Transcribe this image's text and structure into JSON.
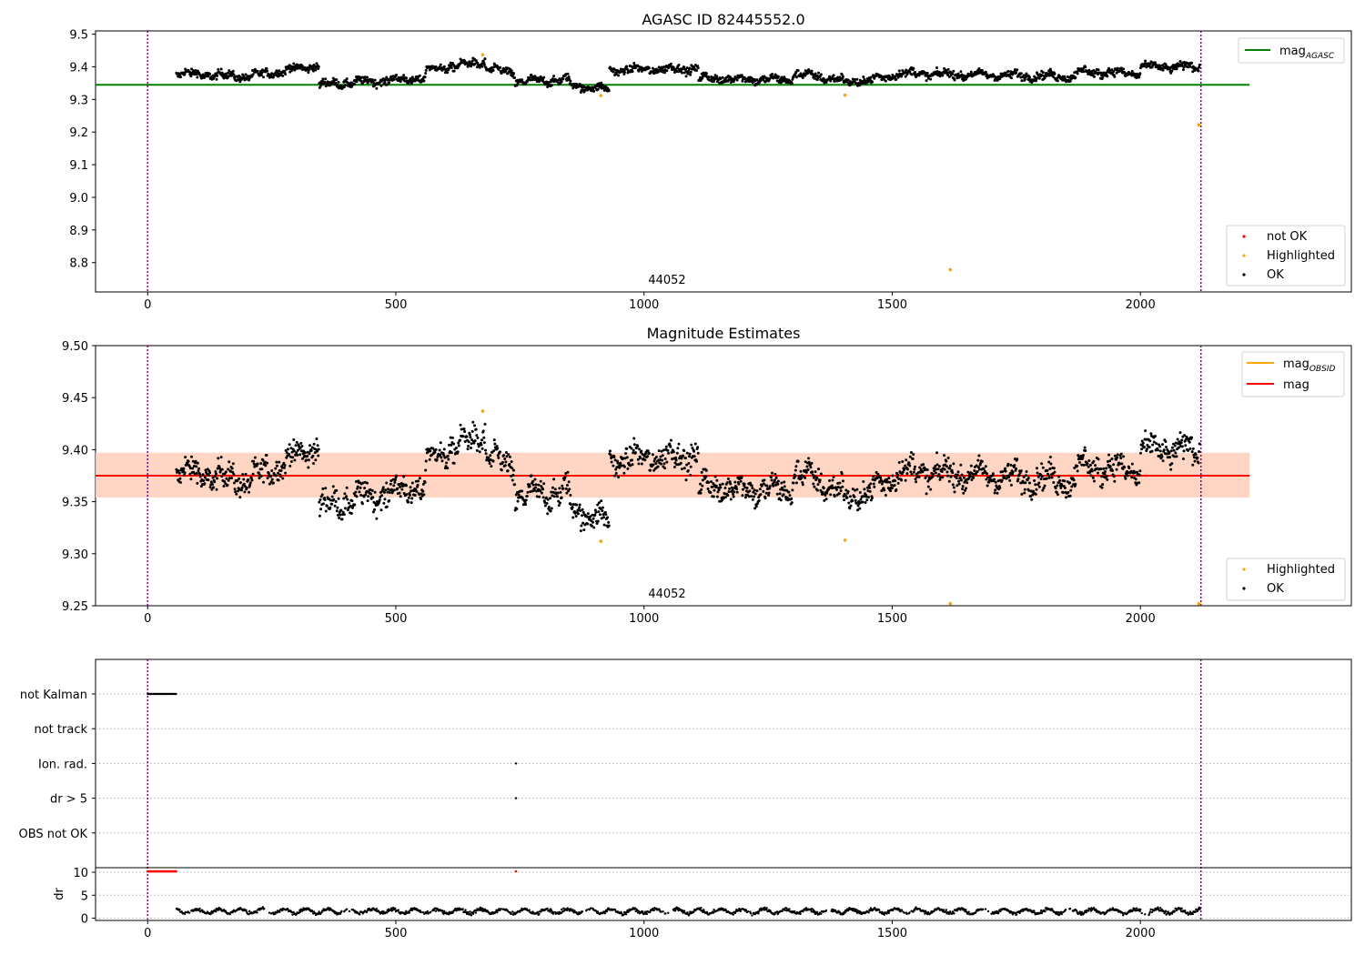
{
  "colors": {
    "ok": "#000000",
    "highlighted": "#ffa500",
    "not_ok": "#ff0000",
    "agasc_line": "#008000",
    "mag_line": "#ff0000",
    "mag_obsid_line": "#ffa500",
    "mag_band": "#ffc0cb",
    "obsid_band": "#ffd3b0",
    "obs_boundary": "#800080",
    "grid": "#b0b0b0"
  },
  "chart_data": [
    {
      "type": "scatter",
      "title": "AGASC ID 82445552.0",
      "xlim": [
        -105,
        2425
      ],
      "ylim": [
        8.71,
        9.51
      ],
      "x_ticks": [
        0,
        500,
        1000,
        1500,
        2000
      ],
      "y_ticks": [
        8.8,
        8.9,
        9.0,
        9.1,
        9.2,
        9.3,
        9.4,
        9.5
      ],
      "x_tick_labels": [
        "0",
        "500",
        "1000",
        "1500",
        "2000"
      ],
      "y_tick_labels": [
        "8.8",
        "8.9",
        "9.0",
        "9.1",
        "9.2",
        "9.3",
        "9.4",
        "9.5"
      ],
      "obsid_label": "44052",
      "obs_boundaries": [
        0,
        2122
      ],
      "mag_agasc": 9.345,
      "mag_agasc_xrange": [
        -105,
        2220
      ],
      "ok_series": {
        "name": "OK",
        "x_range": [
          58,
          2120
        ],
        "segments": [
          {
            "x": [
              58,
              200
            ],
            "y": [
              9.38,
              9.37
            ]
          },
          {
            "x": [
              200,
              345
            ],
            "y": [
              9.37,
              9.405
            ]
          },
          {
            "x": [
              345,
              440
            ],
            "y": [
              9.345,
              9.355
            ]
          },
          {
            "x": [
              440,
              560
            ],
            "y": [
              9.355,
              9.365
            ]
          },
          {
            "x": [
              560,
              680
            ],
            "y": [
              9.39,
              9.415
            ]
          },
          {
            "x": [
              680,
              740
            ],
            "y": [
              9.395,
              9.38
            ]
          },
          {
            "x": [
              740,
              850
            ],
            "y": [
              9.355,
              9.36
            ]
          },
          {
            "x": [
              850,
              930
            ],
            "y": [
              9.345,
              9.33
            ]
          },
          {
            "x": [
              930,
              1110
            ],
            "y": [
              9.39,
              9.395
            ]
          },
          {
            "x": [
              1110,
              1300
            ],
            "y": [
              9.365,
              9.36
            ]
          },
          {
            "x": [
              1300,
              1400
            ],
            "y": [
              9.38,
              9.36
            ]
          },
          {
            "x": [
              1400,
              1500
            ],
            "y": [
              9.35,
              9.37
            ]
          },
          {
            "x": [
              1500,
              1870
            ],
            "y": [
              9.38,
              9.37
            ]
          },
          {
            "x": [
              1870,
              2000
            ],
            "y": [
              9.385,
              9.38
            ]
          },
          {
            "x": [
              2000,
              2120
            ],
            "y": [
              9.4,
              9.4
            ]
          }
        ]
      },
      "highlighted_series": {
        "name": "Highlighted",
        "points": [
          [
            675,
            9.437
          ],
          [
            913,
            9.312
          ],
          [
            1405,
            9.313
          ],
          [
            1617,
            8.778
          ],
          [
            2118,
            9.222
          ]
        ]
      },
      "legend_upper": [
        "mag_AGASC"
      ],
      "legend_lower": [
        "not OK",
        "Highlighted",
        "OK"
      ]
    },
    {
      "type": "scatter",
      "title": "Magnitude Estimates",
      "xlim": [
        -105,
        2425
      ],
      "ylim": [
        9.25,
        9.5
      ],
      "x_ticks": [
        0,
        500,
        1000,
        1500,
        2000
      ],
      "y_ticks": [
        9.25,
        9.3,
        9.35,
        9.4,
        9.45,
        9.5
      ],
      "x_tick_labels": [
        "0",
        "500",
        "1000",
        "1500",
        "2000"
      ],
      "y_tick_labels": [
        "9.25",
        "9.30",
        "9.35",
        "9.40",
        "9.45",
        "9.50"
      ],
      "obsid_label": "44052",
      "obs_boundaries": [
        0,
        2122
      ],
      "mag": 9.375,
      "mag_band": [
        9.354,
        9.397
      ],
      "mag_obsid": 9.375,
      "mag_obsid_band": [
        9.354,
        9.397
      ],
      "band_xrange": [
        -105,
        2220
      ],
      "highlighted_series": {
        "name": "Highlighted",
        "points": [
          [
            675,
            9.437
          ],
          [
            913,
            9.312
          ],
          [
            1405,
            9.313
          ],
          [
            1617,
            9.252
          ],
          [
            2118,
            9.252
          ]
        ]
      },
      "legend_upper": [
        "mag_OBSID",
        "mag"
      ],
      "legend_lower": [
        "Highlighted",
        "OK"
      ]
    },
    {
      "type": "scatter",
      "title": "",
      "xlim": [
        -105,
        2425
      ],
      "x_ticks": [
        0,
        500,
        1000,
        1500,
        2000
      ],
      "x_tick_labels": [
        "0",
        "500",
        "1000",
        "1500",
        "2000"
      ],
      "flag_rows": [
        "not Kalman",
        "not track",
        "Ion. rad.",
        "dr > 5",
        "OBS not OK"
      ],
      "flag_points": {
        "not Kalman": {
          "x_range": [
            0,
            58
          ]
        },
        "Ion. rad.": {
          "x": [
            742
          ]
        },
        "dr > 5": {
          "x": [
            742
          ]
        }
      },
      "dr": {
        "ylabel": "dr",
        "ylim": [
          -0.5,
          11
        ],
        "y_ticks": [
          0,
          5,
          10
        ],
        "y_tick_labels": [
          "0",
          "5",
          "10"
        ],
        "clipped_points_at_10": {
          "x_range": [
            0,
            58
          ],
          "extra_x": [
            742
          ]
        },
        "typical_value": 1.5,
        "x_range": [
          58,
          2120
        ]
      }
    }
  ]
}
